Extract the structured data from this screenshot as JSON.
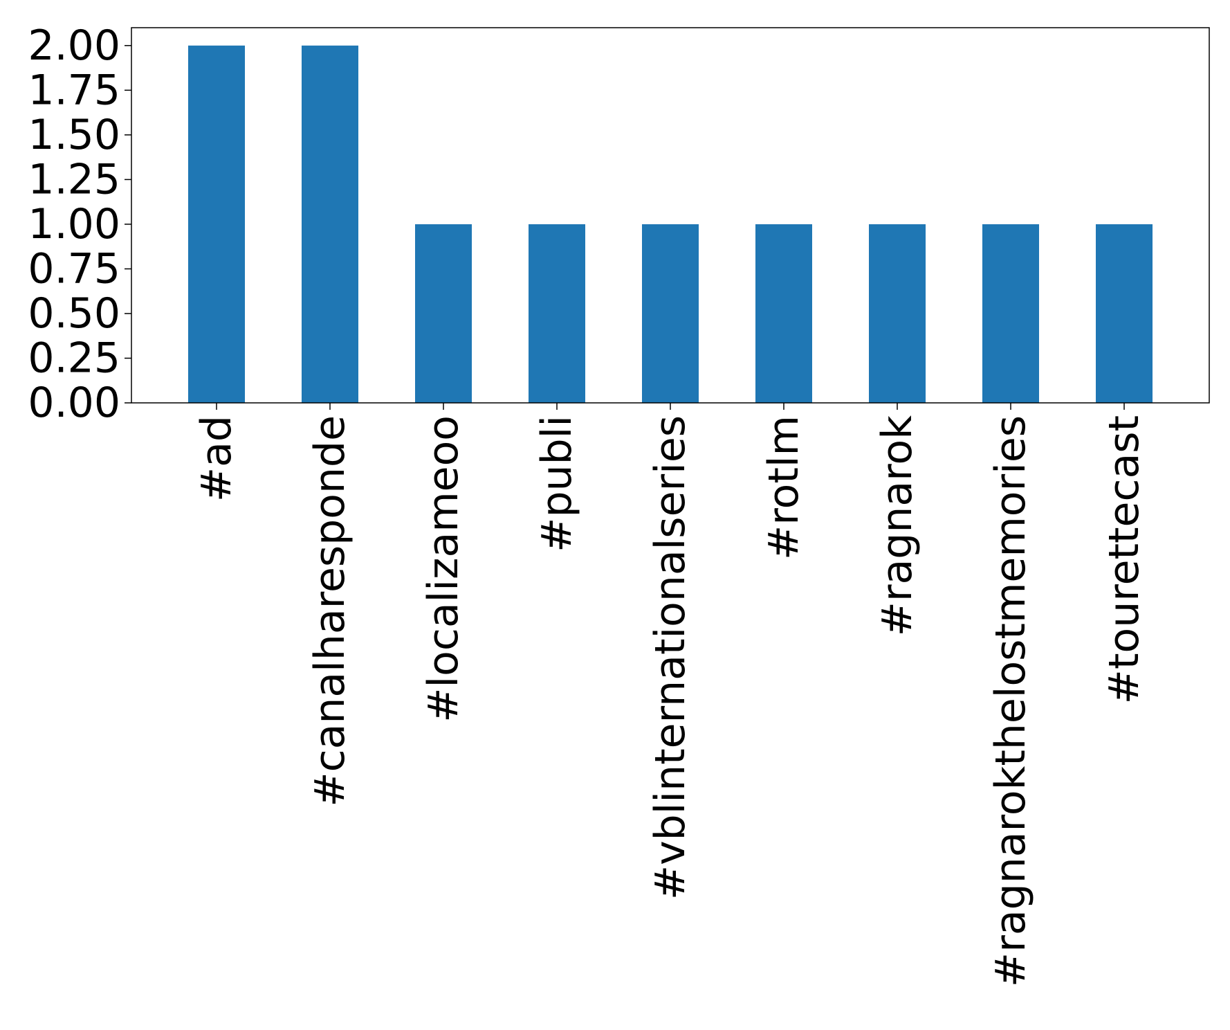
{
  "chart_data": {
    "type": "bar",
    "title": "",
    "xlabel": "",
    "ylabel": "",
    "categories": [
      "#ad",
      "#canalharesponde",
      "#localizameoo",
      "#publi",
      "#vblinternationalseries",
      "#rotlm",
      "#ragnarok",
      "#ragnarokthelostmemories",
      "#tourettecast"
    ],
    "values": [
      2,
      2,
      1,
      1,
      1,
      1,
      1,
      1,
      1
    ],
    "ylim": [
      0,
      2.1
    ],
    "yticks": [
      0,
      0.25,
      0.5,
      0.75,
      1,
      1.25,
      1.5,
      1.75,
      2
    ],
    "ytick_labels": [
      "0.00",
      "0.25",
      "0.50",
      "0.75",
      "1.00",
      "1.25",
      "1.50",
      "1.75",
      "2.00"
    ],
    "grid": false,
    "legend": "none",
    "colors": {
      "bar": "#1f77b4",
      "axis": "#000000"
    }
  }
}
